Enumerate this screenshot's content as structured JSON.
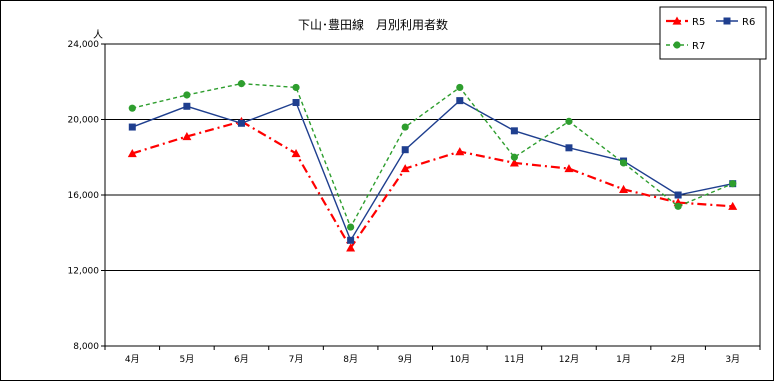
{
  "chart_data": {
    "type": "line",
    "title": "下山･豊田線　月別利用者数",
    "ylabel": "人",
    "categories": [
      "4月",
      "5月",
      "6月",
      "7月",
      "8月",
      "9月",
      "10月",
      "11月",
      "12月",
      "1月",
      "2月",
      "3月"
    ],
    "ylim": [
      8000,
      24000
    ],
    "yticks": [
      8000,
      12000,
      16000,
      20000,
      24000
    ],
    "ytick_labels": [
      "8,000",
      "12,000",
      "16,000",
      "20,000",
      "24,000"
    ],
    "grid": true,
    "legend_position": "top-right",
    "series": [
      {
        "name": "R5",
        "color": "#ff0000",
        "marker": "triangle",
        "line_style": "dash-dot",
        "values": [
          18200,
          19100,
          19900,
          18200,
          13200,
          17400,
          18300,
          17700,
          17400,
          16300,
          15600,
          15400
        ]
      },
      {
        "name": "R6",
        "color": "#1f3f8f",
        "marker": "square",
        "line_style": "solid",
        "values": [
          19600,
          20700,
          19800,
          20900,
          13600,
          18400,
          21000,
          19400,
          18500,
          17800,
          16000,
          16600
        ]
      },
      {
        "name": "R7",
        "color": "#2e9e2e",
        "marker": "circle",
        "line_style": "dashed",
        "values": [
          20600,
          21300,
          21900,
          21700,
          14300,
          19600,
          21700,
          18000,
          19900,
          17700,
          15400,
          16600
        ]
      }
    ]
  }
}
